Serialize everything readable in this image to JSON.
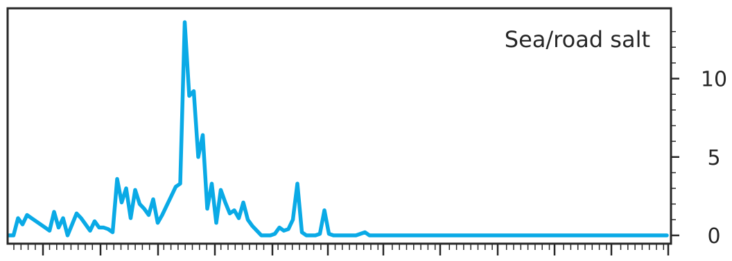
{
  "chart_data": {
    "type": "line",
    "title": "",
    "annotation": "Sea/road salt",
    "xlabel": "",
    "ylabel": "",
    "y_axis_side": "right",
    "ylim": [
      0,
      13.8
    ],
    "xlim": [
      0,
      146
    ],
    "y_ticks": [
      0,
      5,
      10
    ],
    "y_tick_labels": [
      "0",
      "5",
      "10"
    ],
    "line_color": "#0AAAE6",
    "axis_color": "#262626",
    "grid": false,
    "series": [
      {
        "x": [
          0,
          1,
          2,
          3,
          4,
          5,
          6,
          7,
          8,
          9,
          10,
          11,
          12,
          13,
          14,
          15,
          16,
          17,
          18,
          19,
          20,
          21,
          22,
          23,
          24,
          25,
          26,
          27,
          28,
          29,
          30,
          31,
          32,
          33,
          34,
          35,
          36,
          37,
          38,
          39,
          40,
          41,
          42,
          43,
          44,
          45,
          46,
          47,
          48,
          49,
          50,
          51,
          52,
          53,
          54,
          55,
          56,
          57,
          58,
          59,
          60,
          61,
          62,
          63,
          64,
          65,
          66,
          67,
          68,
          69,
          70,
          71,
          72,
          73,
          74,
          75,
          76,
          77,
          78,
          79,
          80,
          81,
          82,
          83,
          84,
          85,
          86,
          87,
          88,
          89,
          90,
          91,
          92,
          93,
          94,
          95,
          96,
          97,
          98,
          99,
          100,
          101,
          102,
          103,
          104,
          105,
          106,
          107,
          108,
          109,
          110,
          111,
          112,
          113,
          114,
          115,
          116,
          117,
          118,
          119,
          120,
          121,
          122,
          123,
          124,
          125,
          126,
          127,
          128,
          129,
          130,
          131,
          132,
          133,
          134,
          135,
          136,
          137,
          138,
          139,
          140,
          141,
          142,
          143,
          144,
          145,
          146
        ],
        "values": [
          0.0,
          0.0,
          1.1,
          0.7,
          1.3,
          1.1,
          0.9,
          0.7,
          0.5,
          0.3,
          1.5,
          0.5,
          1.1,
          0.0,
          0.7,
          1.4,
          1.1,
          0.7,
          0.3,
          0.9,
          0.5,
          0.5,
          0.4,
          0.2,
          3.6,
          2.1,
          3.0,
          1.1,
          2.9,
          2.0,
          1.7,
          1.3,
          2.3,
          0.8,
          1.3,
          1.9,
          2.5,
          3.1,
          3.3,
          13.6,
          8.9,
          9.2,
          5.0,
          6.4,
          1.7,
          3.3,
          0.8,
          2.9,
          2.1,
          1.4,
          1.6,
          1.1,
          2.1,
          1.0,
          0.6,
          0.3,
          0.0,
          0.0,
          0.0,
          0.1,
          0.5,
          0.3,
          0.4,
          1.0,
          3.3,
          0.2,
          0.0,
          0.0,
          0.0,
          0.1,
          1.6,
          0.1,
          0.0,
          0.0,
          0.0,
          0.0,
          0.0,
          0.0,
          0.1,
          0.2,
          0.0,
          0.0,
          0.0,
          0.0,
          0.0,
          0.0,
          0.0,
          0.0,
          0.0,
          0.0,
          0.0,
          0.0,
          0.0,
          0.0,
          0.0,
          0.0,
          0.0,
          0.0,
          0.0,
          0.0,
          0.0,
          0.0,
          0.0,
          0.0,
          0.0,
          0.0,
          0.0,
          0.0,
          0.0,
          0.0,
          0.0,
          0.0,
          0.0,
          0.0,
          0.0,
          0.0,
          0.0,
          0.0,
          0.0,
          0.0,
          0.0,
          0.0,
          0.0,
          0.0,
          0.0,
          0.0,
          0.0,
          0.0,
          0.0,
          0.0,
          0.0,
          0.0,
          0.0,
          0.0,
          0.0,
          0.0,
          0.0,
          0.0,
          0.0,
          0.0,
          0.0,
          0.0,
          0.0,
          0.0,
          0.0,
          0.0,
          0.0
        ]
      }
    ]
  }
}
